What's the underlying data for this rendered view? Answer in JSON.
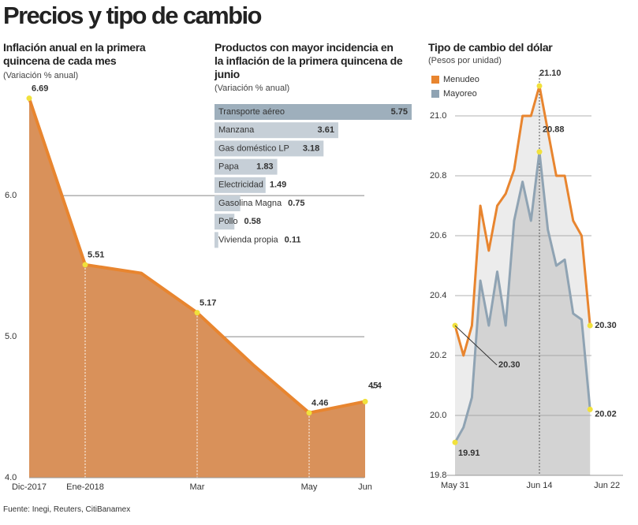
{
  "title": "Precios y tipo de cambio",
  "source": "Fuente: Inegi, Reuters, CitiBanamex",
  "chart_data": [
    {
      "type": "area",
      "title": "Inflación anual en la primera quincena de cada mes",
      "subtitle": "(Variación % anual)",
      "categories": [
        "Dic-2017",
        "Ene-2018",
        null,
        "Mar",
        null,
        "May",
        "Jun"
      ],
      "values": [
        6.69,
        5.51,
        5.45,
        5.17,
        4.8,
        4.46,
        4.54
      ],
      "value_labels": [
        "6.69",
        "5.51",
        null,
        "5.17",
        null,
        "4.46",
        "4.54"
      ],
      "color": "#e8852f",
      "fill": "#d9915a",
      "ylim": [
        4,
        6.8
      ],
      "yticks": [
        {
          "value": 4,
          "label": "4.0"
        },
        {
          "value": 5,
          "label": "5.0"
        },
        {
          "value": 6,
          "label": "6.0"
        }
      ],
      "grid": true
    },
    {
      "type": "bar",
      "orientation": "horizontal",
      "title": "Productos con mayor incidencia en la inflación de la primera quincena de junio",
      "subtitle": "(Variación % anual)",
      "categories": [
        "Transporte aéreo",
        "Manzana",
        "Gas doméstico LP",
        "Papa",
        "Electricidad",
        "Gasolina Magna",
        "Pollo",
        "Vivienda propia"
      ],
      "values": [
        5.75,
        3.61,
        3.18,
        1.83,
        1.49,
        0.75,
        0.58,
        0.11
      ],
      "colors": [
        "#9eafbc",
        "#c6cfd7",
        "#c6cfd7",
        "#c6cfd7",
        "#c6cfd7",
        "#c6cfd7",
        "#c6cfd7",
        "#c6cfd7"
      ]
    },
    {
      "type": "line",
      "title": "Tipo de cambio del dólar",
      "subtitle": "(Pesos por unidad)",
      "categories": [
        "May 31",
        null,
        null,
        null,
        null,
        null,
        null,
        null,
        null,
        null,
        "Jun 14",
        null,
        null,
        null,
        null,
        null,
        null,
        null,
        "Jun 22"
      ],
      "series": [
        {
          "name": "Menudeo",
          "color": "#e8852f",
          "fill": "#ececec",
          "values": [
            20.3,
            20.2,
            20.3,
            20.7,
            20.55,
            20.7,
            20.74,
            20.82,
            21.0,
            21.0,
            21.1,
            20.95,
            20.8,
            20.8,
            20.65,
            20.6,
            20.3,
            null,
            null
          ],
          "value_labels": [
            "20.30",
            null,
            null,
            null,
            null,
            null,
            null,
            null,
            null,
            null,
            "21.10",
            null,
            null,
            null,
            null,
            null,
            "20.30",
            null,
            null
          ]
        },
        {
          "name": "Mayoreo",
          "color": "#8fa3b3",
          "fill": "#d3d3d3",
          "values": [
            19.91,
            19.96,
            20.06,
            20.45,
            20.3,
            20.48,
            20.3,
            20.65,
            20.78,
            20.65,
            20.88,
            20.62,
            20.5,
            20.52,
            20.34,
            20.32,
            20.02,
            null,
            null
          ],
          "value_labels": [
            "19.91",
            null,
            null,
            null,
            null,
            null,
            null,
            null,
            null,
            null,
            "20.88",
            null,
            null,
            null,
            null,
            null,
            "20.02",
            null,
            null
          ]
        }
      ],
      "ylim": [
        19.8,
        21.2
      ],
      "yticks": [
        19.8,
        {
          "value": 20,
          "label": "20.0"
        },
        20.2,
        20.4,
        20.6,
        20.8,
        {
          "value": 21,
          "label": "21.0"
        }
      ],
      "grid": true,
      "legend": "top-left"
    }
  ]
}
